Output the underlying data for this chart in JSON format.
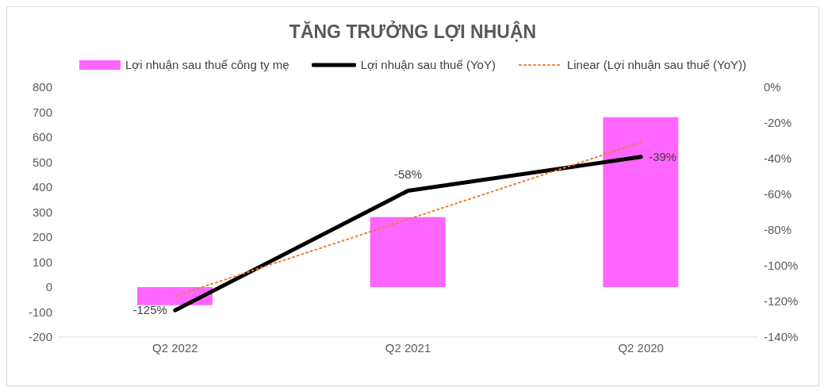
{
  "chart_data": {
    "type": "bar",
    "title": "TĂNG TRƯỞNG LỢI NHUẬN",
    "categories": [
      "Q2 2022",
      "Q2 2021",
      "Q2 2020"
    ],
    "series": [
      {
        "name": "Lợi nhuận sau thuế công ty mẹ",
        "color": "#ff66ff",
        "values": [
          -72,
          280,
          680
        ]
      },
      {
        "name": "Lợi nhuận sau thuế (YoY)",
        "type": "line",
        "axis": "y2",
        "color": "#000000",
        "line_style": "solid",
        "values": [
          -125,
          -58,
          -39
        ],
        "value_labels": [
          "-125%",
          "-58%",
          "-39%"
        ]
      },
      {
        "name": "Linear (Lợi nhuận sau thuế (YoY))",
        "type": "line",
        "axis": "y2",
        "color": "#ed7d31",
        "line_style": "dotted",
        "values": [
          -117,
          -74,
          -31
        ]
      }
    ],
    "ylim": [
      -200,
      800
    ],
    "yticks": [
      -200,
      -100,
      0,
      100,
      200,
      300,
      400,
      500,
      600,
      700,
      800
    ],
    "y2lim": [
      -140,
      0
    ],
    "y2ticks": [
      {
        "value": -140,
        "label": "-140%"
      },
      {
        "value": -120,
        "label": "-120%"
      },
      {
        "value": -100,
        "label": "-100%"
      },
      {
        "value": -80,
        "label": "-80%"
      },
      {
        "value": -60,
        "label": "-60%"
      },
      {
        "value": -40,
        "label": "-40%"
      },
      {
        "value": -20,
        "label": "-20%"
      },
      {
        "value": 0,
        "label": "0%"
      }
    ],
    "grid": false,
    "legend": "top",
    "marker": "none"
  }
}
